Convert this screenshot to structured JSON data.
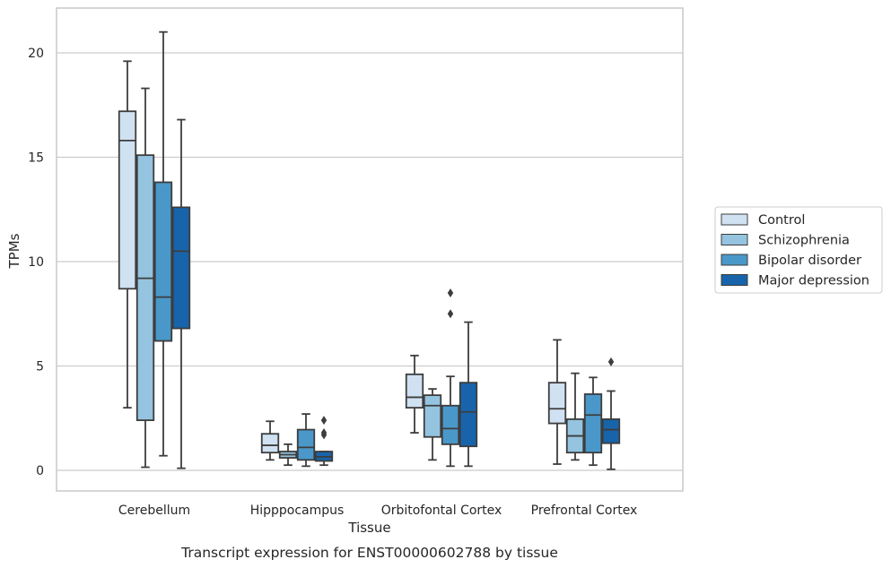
{
  "chart_data": {
    "type": "box",
    "title": "",
    "caption": "Transcript expression for ENST00000602788 by tissue",
    "xlabel": "Tissue",
    "ylabel": "TPMs",
    "ylim": [
      -1,
      22
    ],
    "yticks": [
      0,
      5,
      10,
      15,
      20
    ],
    "grid": "horizontal",
    "legend_position": "right",
    "categories": [
      "Cerebellum",
      "Hipppocampus",
      "Orbitofontal Cortex",
      "Prefrontal Cortex"
    ],
    "series": [
      {
        "name": "Control",
        "color": "#d0e1f2",
        "boxes": [
          {
            "whislo": 3.0,
            "q1": 8.7,
            "med": 15.8,
            "q3": 17.2,
            "whishi": 19.6,
            "fliers": []
          },
          {
            "whislo": 0.5,
            "q1": 0.85,
            "med": 1.2,
            "q3": 1.75,
            "whishi": 2.35,
            "fliers": []
          },
          {
            "whislo": 1.8,
            "q1": 3.0,
            "med": 3.5,
            "q3": 4.6,
            "whishi": 5.5,
            "fliers": []
          },
          {
            "whislo": 0.3,
            "q1": 2.25,
            "med": 2.95,
            "q3": 4.2,
            "whishi": 6.25,
            "fliers": []
          }
        ]
      },
      {
        "name": "Schizophrenia",
        "color": "#94c4df",
        "boxes": [
          {
            "whislo": 0.15,
            "q1": 2.4,
            "med": 9.2,
            "q3": 15.1,
            "whishi": 18.3,
            "fliers": []
          },
          {
            "whislo": 0.25,
            "q1": 0.6,
            "med": 0.75,
            "q3": 0.9,
            "whishi": 1.25,
            "fliers": []
          },
          {
            "whislo": 0.5,
            "q1": 1.6,
            "med": 3.1,
            "q3": 3.6,
            "whishi": 3.9,
            "fliers": []
          },
          {
            "whislo": 0.5,
            "q1": 0.85,
            "med": 1.65,
            "q3": 2.45,
            "whishi": 4.65,
            "fliers": []
          }
        ]
      },
      {
        "name": "Bipolar disorder",
        "color": "#4a98c9",
        "boxes": [
          {
            "whislo": 0.7,
            "q1": 6.2,
            "med": 8.3,
            "q3": 13.8,
            "whishi": 21.0,
            "fliers": []
          },
          {
            "whislo": 0.2,
            "q1": 0.5,
            "med": 1.1,
            "q3": 1.95,
            "whishi": 2.7,
            "fliers": []
          },
          {
            "whislo": 0.2,
            "q1": 1.25,
            "med": 2.0,
            "q3": 3.1,
            "whishi": 4.5,
            "fliers": [
              7.5,
              8.5
            ]
          },
          {
            "whislo": 0.25,
            "q1": 0.85,
            "med": 2.65,
            "q3": 3.65,
            "whishi": 4.45,
            "fliers": []
          }
        ]
      },
      {
        "name": "Major depression",
        "color": "#1764ab",
        "boxes": [
          {
            "whislo": 0.1,
            "q1": 6.8,
            "med": 10.5,
            "q3": 12.6,
            "whishi": 16.8,
            "fliers": []
          },
          {
            "whislo": 0.25,
            "q1": 0.45,
            "med": 0.65,
            "q3": 0.9,
            "whishi": 0.9,
            "fliers": [
              1.7,
              1.8,
              2.4
            ]
          },
          {
            "whislo": 0.2,
            "q1": 1.15,
            "med": 2.8,
            "q3": 4.2,
            "whishi": 7.1,
            "fliers": []
          },
          {
            "whislo": 0.05,
            "q1": 1.3,
            "med": 1.95,
            "q3": 2.45,
            "whishi": 3.8,
            "fliers": [
              5.2
            ]
          }
        ]
      }
    ]
  }
}
